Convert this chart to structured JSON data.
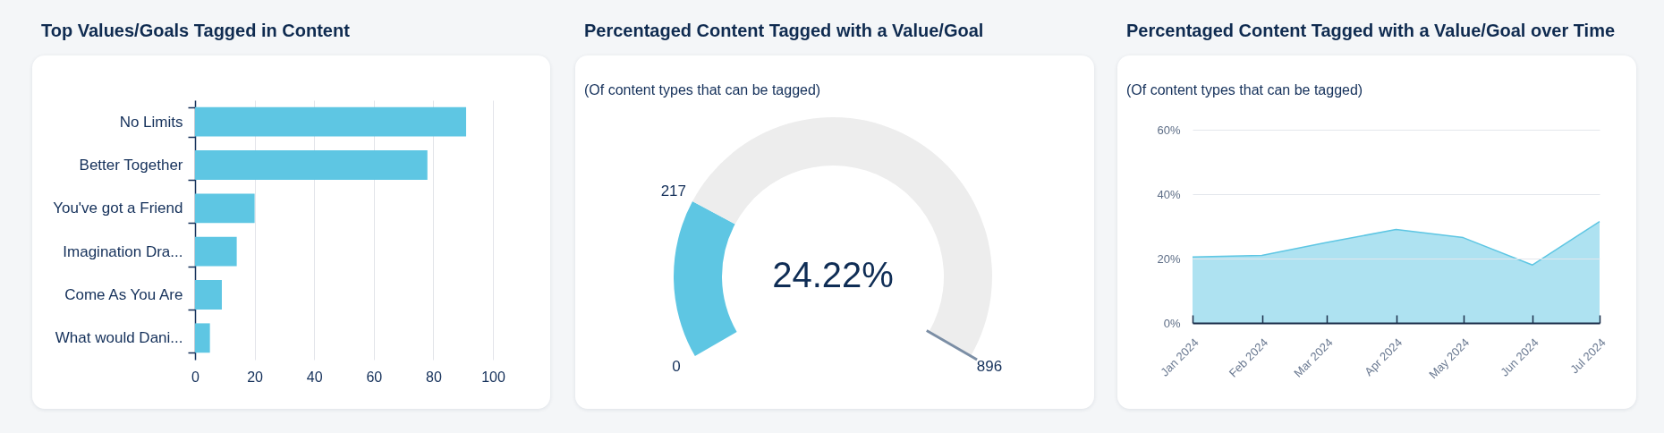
{
  "chart_data": [
    {
      "type": "bar",
      "orientation": "horizontal",
      "title": "Top Values/Goals Tagged in Content",
      "categories": [
        "No Limits",
        "Better Together",
        "You've got a Friend",
        "Imagination Dra...",
        "Come As You Are",
        "What would Dani..."
      ],
      "values": [
        91,
        78,
        20,
        14,
        9,
        5
      ],
      "color": "#5ec6e3",
      "xlim": [
        0,
        100
      ],
      "xticks": [
        0,
        20,
        40,
        60,
        80,
        100
      ],
      "grid": "x"
    },
    {
      "type": "donut",
      "title": "Percentaged Content Tagged with a Value/Goal",
      "subtitle": "(Of content types that can be tagged)",
      "categories": [
        null,
        null
      ],
      "values": [
        24.22,
        75.78
      ],
      "colors": [
        "#5ec6e3",
        "#ededed"
      ],
      "annotations": [
        "0",
        "217",
        "896",
        "24.22%"
      ]
    },
    {
      "type": "area",
      "title": "Percentaged Content Tagged with a Value/Goal over Time",
      "subtitle": "(Of content types that can be tagged)",
      "x": [
        "2024-01",
        "2024-02",
        "2024-03",
        "2024-04",
        "2024-05",
        "2024-06",
        "2024-07"
      ],
      "series": [
        {
          "color": "#5ec6e3",
          "values": [
            20.5,
            21,
            25,
            29,
            26.5,
            18,
            31.5
          ]
        }
      ],
      "xlim": [
        "2024-01",
        "2024-07"
      ],
      "xticks": [
        {
          "value": "2024-01",
          "label": "Jan 2024"
        },
        {
          "value": "2024-02",
          "label": "Feb 2024"
        },
        {
          "value": "2024-03",
          "label": "Mar 2024"
        },
        {
          "value": "2024-04",
          "label": "Apr 2024"
        },
        {
          "value": "2024-05",
          "label": "May 2024"
        },
        {
          "value": "2024-06",
          "label": "Jun 2024"
        },
        {
          "value": "2024-07",
          "label": "Jul 2024"
        }
      ],
      "ylim": [
        0,
        60
      ],
      "yticks": [
        {
          "value": 0,
          "label": "0%"
        },
        {
          "value": 20,
          "label": "20%"
        },
        {
          "value": 40,
          "label": "40%"
        },
        {
          "value": 60,
          "label": "60%"
        }
      ],
      "grid": "y"
    }
  ]
}
